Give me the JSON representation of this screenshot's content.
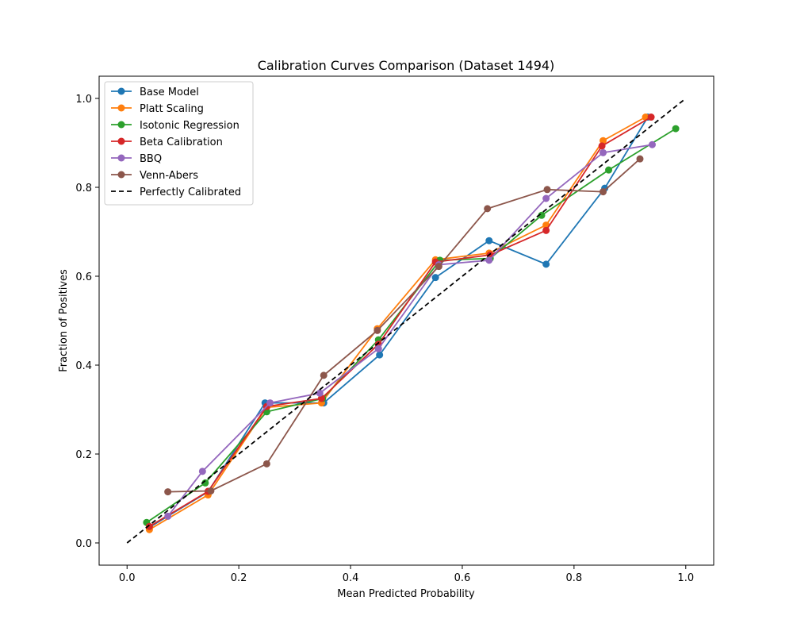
{
  "chart_data": {
    "type": "line",
    "title": "Calibration Curves Comparison (Dataset 1494)",
    "xlabel": "Mean Predicted Probability",
    "ylabel": "Fraction of Positives",
    "xlim": [
      -0.05,
      1.05
    ],
    "ylim": [
      -0.05,
      1.05
    ],
    "xticks": [
      "0.0",
      "0.2",
      "0.4",
      "0.6",
      "0.8",
      "1.0"
    ],
    "yticks": [
      "0.0",
      "0.2",
      "0.4",
      "0.6",
      "0.8",
      "1.0"
    ],
    "grid": false,
    "legend_position": "top-left",
    "series": [
      {
        "name": "Base Model",
        "color": "#1f77b4",
        "marker": "circle",
        "points": [
          [
            0.04,
            0.035
          ],
          [
            0.145,
            0.115
          ],
          [
            0.247,
            0.315
          ],
          [
            0.352,
            0.315
          ],
          [
            0.452,
            0.423
          ],
          [
            0.552,
            0.597
          ],
          [
            0.648,
            0.68
          ],
          [
            0.75,
            0.627
          ],
          [
            0.855,
            0.798
          ],
          [
            0.932,
            0.958
          ]
        ]
      },
      {
        "name": "Platt Scaling",
        "color": "#ff7f0e",
        "marker": "circle",
        "points": [
          [
            0.04,
            0.03
          ],
          [
            0.145,
            0.108
          ],
          [
            0.25,
            0.305
          ],
          [
            0.348,
            0.315
          ],
          [
            0.448,
            0.482
          ],
          [
            0.552,
            0.637
          ],
          [
            0.648,
            0.652
          ],
          [
            0.75,
            0.715
          ],
          [
            0.852,
            0.905
          ],
          [
            0.928,
            0.958
          ]
        ]
      },
      {
        "name": "Isotonic Regression",
        "color": "#2ca02c",
        "marker": "circle",
        "points": [
          [
            0.035,
            0.046
          ],
          [
            0.14,
            0.135
          ],
          [
            0.25,
            0.295
          ],
          [
            0.35,
            0.325
          ],
          [
            0.45,
            0.457
          ],
          [
            0.56,
            0.636
          ],
          [
            0.65,
            0.64
          ],
          [
            0.742,
            0.737
          ],
          [
            0.862,
            0.839
          ],
          [
            0.982,
            0.932
          ]
        ]
      },
      {
        "name": "Beta Calibration",
        "color": "#d62728",
        "marker": "circle",
        "points": [
          [
            0.04,
            0.037
          ],
          [
            0.145,
            0.116
          ],
          [
            0.25,
            0.307
          ],
          [
            0.348,
            0.325
          ],
          [
            0.45,
            0.447
          ],
          [
            0.552,
            0.632
          ],
          [
            0.65,
            0.648
          ],
          [
            0.75,
            0.703
          ],
          [
            0.85,
            0.893
          ],
          [
            0.938,
            0.958
          ]
        ]
      },
      {
        "name": "BBQ",
        "color": "#9467bd",
        "marker": "circle",
        "points": [
          [
            0.073,
            0.06
          ],
          [
            0.135,
            0.161
          ],
          [
            0.256,
            0.315
          ],
          [
            0.345,
            0.337
          ],
          [
            0.45,
            0.437
          ],
          [
            0.558,
            0.626
          ],
          [
            0.648,
            0.636
          ],
          [
            0.75,
            0.775
          ],
          [
            0.852,
            0.878
          ],
          [
            0.94,
            0.896
          ]
        ]
      },
      {
        "name": "Venn-Abers",
        "color": "#8c564b",
        "marker": "circle",
        "points": [
          [
            0.073,
            0.115
          ],
          [
            0.15,
            0.117
          ],
          [
            0.25,
            0.178
          ],
          [
            0.352,
            0.377
          ],
          [
            0.448,
            0.478
          ],
          [
            0.558,
            0.622
          ],
          [
            0.645,
            0.752
          ],
          [
            0.752,
            0.795
          ],
          [
            0.852,
            0.79
          ],
          [
            0.918,
            0.864
          ]
        ]
      },
      {
        "name": "Perfectly Calibrated",
        "color": "#000000",
        "marker": "none",
        "dashed": true,
        "points": [
          [
            0.0,
            0.0
          ],
          [
            1.0,
            1.0
          ]
        ]
      }
    ]
  }
}
